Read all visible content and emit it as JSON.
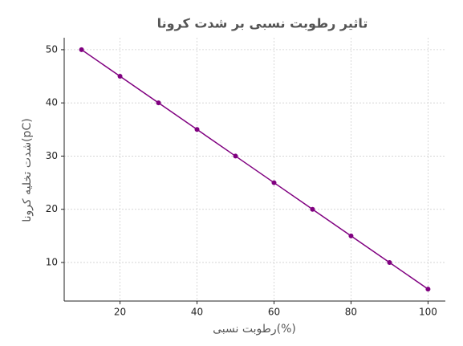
{
  "chart_data": {
    "type": "line",
    "title": "تاثیر رطوبت نسبی بر شدت کرونا",
    "xlabel": "رطوبت نسبی(%)",
    "ylabel": "شدت تخلیه کرونا(pC)",
    "x": [
      10,
      20,
      30,
      40,
      50,
      60,
      70,
      80,
      90,
      100
    ],
    "series": [
      {
        "color": "#800080",
        "values": [
          50,
          45,
          40,
          35,
          30,
          25,
          20,
          15,
          10,
          5
        ]
      }
    ],
    "xlim": [
      5.5,
      104.5
    ],
    "ylim": [
      2.75,
      52.25
    ],
    "xticks": [
      20,
      40,
      60,
      80,
      100
    ],
    "yticks": [
      10,
      20,
      30,
      40,
      50
    ],
    "grid": true
  }
}
